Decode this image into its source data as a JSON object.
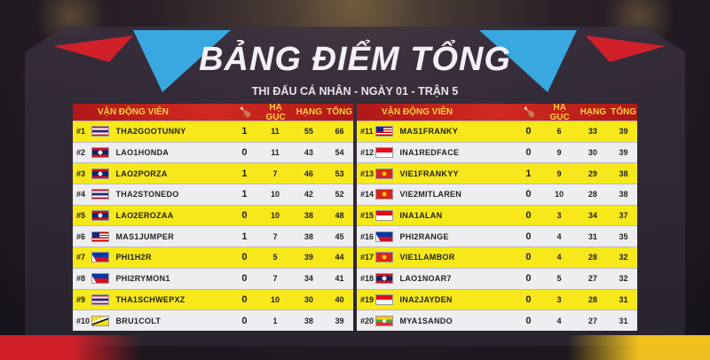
{
  "title": "BẢNG ĐIỂM TỔNG",
  "subtitle": "THI ĐẤU CÁ NHÂN - NGÀY 01 - TRẬN 5",
  "headers": {
    "player": "VẬN ĐỘNG VIÊN",
    "chicken_icon": "chicken-dinner-icon",
    "kills": "HẠ GỤC",
    "placement": "HẠNG",
    "total": "TỔNG"
  },
  "colors": {
    "header_red": "#d22a20",
    "header_text": "#f5d23a",
    "row_yellow": "#f6e81a",
    "row_white": "#eeeef0"
  },
  "left": [
    {
      "rank": "#1",
      "flag": "THA",
      "name": "THA2GOOTUNNY",
      "wins": "1",
      "kills": "11",
      "place": "55",
      "total": "66"
    },
    {
      "rank": "#2",
      "flag": "LAO",
      "name": "LAO1HONDA",
      "wins": "0",
      "kills": "11",
      "place": "43",
      "total": "54"
    },
    {
      "rank": "#3",
      "flag": "LAO",
      "name": "LAO2PORZA",
      "wins": "1",
      "kills": "7",
      "place": "46",
      "total": "53"
    },
    {
      "rank": "#4",
      "flag": "THA",
      "name": "THA2STONEDO",
      "wins": "1",
      "kills": "10",
      "place": "42",
      "total": "52"
    },
    {
      "rank": "#5",
      "flag": "LAO",
      "name": "LAO2EROZAA",
      "wins": "0",
      "kills": "10",
      "place": "38",
      "total": "48"
    },
    {
      "rank": "#6",
      "flag": "MAS",
      "name": "MAS1JUMPER",
      "wins": "1",
      "kills": "7",
      "place": "38",
      "total": "45"
    },
    {
      "rank": "#7",
      "flag": "PHI",
      "name": "PHI1H2R",
      "wins": "0",
      "kills": "5",
      "place": "39",
      "total": "44"
    },
    {
      "rank": "#8",
      "flag": "PHI",
      "name": "PHI2RYMON1",
      "wins": "0",
      "kills": "7",
      "place": "34",
      "total": "41"
    },
    {
      "rank": "#9",
      "flag": "THA",
      "name": "THA1SCHWEPXZ",
      "wins": "0",
      "kills": "10",
      "place": "30",
      "total": "40"
    },
    {
      "rank": "#10",
      "flag": "BRU",
      "name": "BRU1COLT",
      "wins": "0",
      "kills": "1",
      "place": "38",
      "total": "39"
    }
  ],
  "right": [
    {
      "rank": "#11",
      "flag": "MAS",
      "name": "MAS1FRANKY",
      "wins": "0",
      "kills": "6",
      "place": "33",
      "total": "39"
    },
    {
      "rank": "#12",
      "flag": "INA",
      "name": "INA1REDFACE",
      "wins": "0",
      "kills": "9",
      "place": "30",
      "total": "39"
    },
    {
      "rank": "#13",
      "flag": "VIE",
      "name": "VIE1FRANKYY",
      "wins": "1",
      "kills": "9",
      "place": "29",
      "total": "38"
    },
    {
      "rank": "#14",
      "flag": "VIE",
      "name": "VIE2MITLAREN",
      "wins": "0",
      "kills": "10",
      "place": "28",
      "total": "38"
    },
    {
      "rank": "#15",
      "flag": "INA",
      "name": "INA1ALAN",
      "wins": "0",
      "kills": "3",
      "place": "34",
      "total": "37"
    },
    {
      "rank": "#16",
      "flag": "PHI",
      "name": "PHI2RANGE",
      "wins": "0",
      "kills": "4",
      "place": "31",
      "total": "35"
    },
    {
      "rank": "#17",
      "flag": "VIE",
      "name": "VIE1LAMBOR",
      "wins": "0",
      "kills": "4",
      "place": "28",
      "total": "32"
    },
    {
      "rank": "#18",
      "flag": "LAO",
      "name": "LAO1NOAR7",
      "wins": "0",
      "kills": "5",
      "place": "27",
      "total": "32"
    },
    {
      "rank": "#19",
      "flag": "INA",
      "name": "INA2JAYDEN",
      "wins": "0",
      "kills": "3",
      "place": "28",
      "total": "31"
    },
    {
      "rank": "#20",
      "flag": "MYA",
      "name": "MYA1SANDO",
      "wins": "0",
      "kills": "4",
      "place": "27",
      "total": "31"
    }
  ]
}
